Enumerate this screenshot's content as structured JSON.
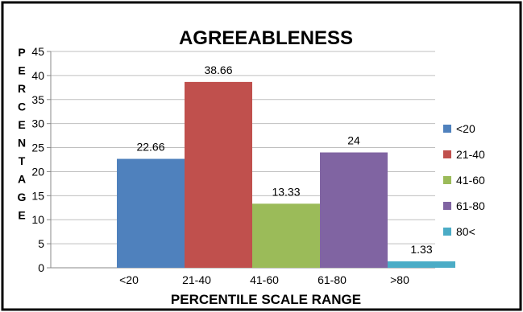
{
  "chart_data": {
    "type": "bar",
    "title": "AGREEABLENESS",
    "xlabel": "PERCENTILE SCALE RANGE",
    "ylabel": "PERCENTAGE",
    "ylabel_letters": [
      "P",
      "E",
      "R",
      "C",
      "E",
      "N",
      "T",
      "A",
      "G",
      "E"
    ],
    "categories": [
      "<20",
      "21-40",
      "41-60",
      "61-80",
      ">80"
    ],
    "values": [
      22.66,
      38.66,
      13.33,
      24,
      1.33
    ],
    "data_labels": [
      "22.66",
      "38.66",
      "13.33",
      "24",
      "1.33"
    ],
    "colors": [
      "#4F81BD",
      "#C0504D",
      "#9BBB59",
      "#8064A2",
      "#4BACC6"
    ],
    "legend": [
      "<20",
      "21-40",
      "41-60",
      "61-80",
      "80<"
    ],
    "legend_position": "right",
    "ylim": [
      0,
      45
    ],
    "yticks": [
      0,
      5,
      10,
      15,
      20,
      25,
      30,
      35,
      40,
      45
    ],
    "grid": true
  }
}
